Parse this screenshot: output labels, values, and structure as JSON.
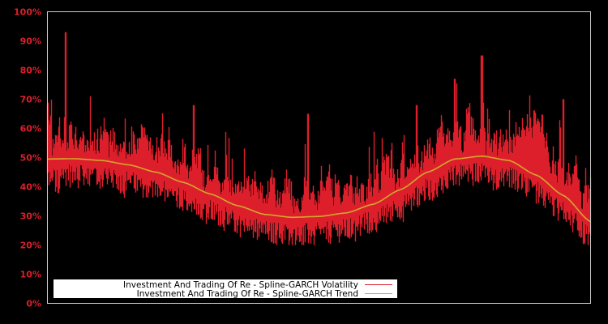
{
  "chart_data": {
    "type": "line",
    "title": "",
    "xlabel": "",
    "ylabel": "",
    "ylim": [
      0,
      100
    ],
    "y_tick_labels": [
      "0%",
      "10%",
      "20%",
      "30%",
      "40%",
      "50%",
      "60%",
      "70%",
      "80%",
      "90%",
      "100%"
    ],
    "y_ticks": [
      0,
      10,
      20,
      30,
      40,
      50,
      60,
      70,
      80,
      90,
      100
    ],
    "x_tick_labels": [],
    "grid": false,
    "legend_position": "lower-left",
    "background": "#000000",
    "axis_color": "#cccccc",
    "tick_label_color": "#dd1f2c",
    "series": [
      {
        "name": "Investment And Trading Of Re - Spline-GARCH Volatility",
        "color": "#dd1f2c",
        "approx_points_x_frac": [
          0.0,
          0.01,
          0.03,
          0.05,
          0.08,
          0.1,
          0.15,
          0.2,
          0.25,
          0.28,
          0.3,
          0.35,
          0.4,
          0.42,
          0.45,
          0.5,
          0.55,
          0.6,
          0.65,
          0.68,
          0.7,
          0.75,
          0.8,
          0.8,
          0.85,
          0.9,
          0.95,
          1.0
        ],
        "approx_values": [
          72,
          60,
          40,
          46,
          55,
          42,
          50,
          45,
          40,
          60,
          35,
          35,
          28,
          60,
          25,
          40,
          30,
          35,
          45,
          65,
          40,
          55,
          45,
          84,
          50,
          42,
          35,
          22
        ],
        "notable_peaks": [
          {
            "x_frac": 0.033,
            "value": 93
          },
          {
            "x_frac": 0.27,
            "value": 68
          },
          {
            "x_frac": 0.48,
            "value": 65
          },
          {
            "x_frac": 0.68,
            "value": 68
          },
          {
            "x_frac": 0.75,
            "value": 77
          },
          {
            "x_frac": 0.8,
            "value": 85
          },
          {
            "x_frac": 0.95,
            "value": 70
          }
        ],
        "range": [
          20,
          93
        ]
      },
      {
        "name": "Investment And Trading Of Re - Spline-GARCH Trend",
        "color": "#d4a72c",
        "x_frac": [
          0.0,
          0.05,
          0.1,
          0.15,
          0.2,
          0.25,
          0.3,
          0.35,
          0.4,
          0.45,
          0.5,
          0.55,
          0.6,
          0.65,
          0.7,
          0.75,
          0.8,
          0.85,
          0.9,
          0.95,
          1.0
        ],
        "values": [
          49.5,
          49.6,
          49,
          47.5,
          45,
          41.5,
          37.5,
          33.5,
          30.5,
          29.5,
          29.8,
          31,
          34,
          39,
          45,
          49.5,
          50.5,
          49,
          44,
          37,
          28
        ]
      }
    ]
  },
  "legend": {
    "items": [
      {
        "label": "Investment And Trading Of Re - Spline-GARCH Volatility",
        "color": "#dd1f2c"
      },
      {
        "label": "Investment And Trading Of Re - Spline-GARCH Trend",
        "color": "#d4a72c"
      }
    ]
  }
}
